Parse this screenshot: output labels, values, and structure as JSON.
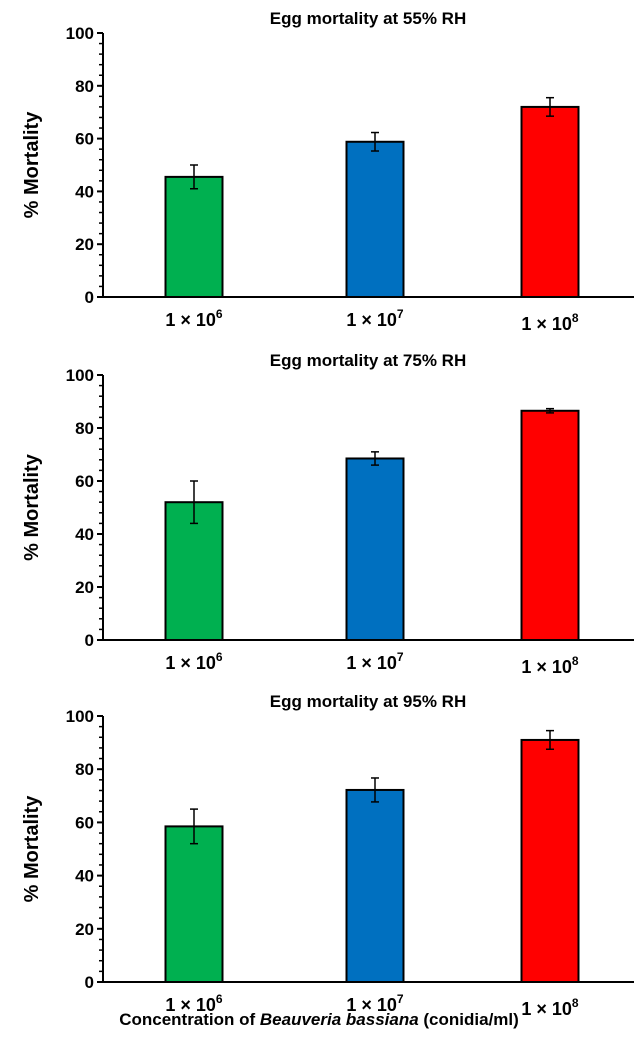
{
  "chart_data": [
    {
      "type": "bar",
      "title": "Egg mortality at 55% RH",
      "ylabel": "% Mortality",
      "ylim": [
        0,
        100
      ],
      "yticks": [
        "0",
        "20",
        "40",
        "60",
        "80",
        "100"
      ],
      "categories": [
        {
          "base": "1 × 10",
          "exp": "6"
        },
        {
          "base": "1 × 10",
          "exp": "7"
        },
        {
          "base": "1 × 10",
          "exp": "8"
        }
      ],
      "values": [
        45.5,
        58.8,
        72.0
      ],
      "errors": [
        4.5,
        3.5,
        3.5
      ],
      "colors": [
        "#00b050",
        "#0070c0",
        "#ff0000"
      ]
    },
    {
      "type": "bar",
      "title": "Egg mortality at 75% RH",
      "ylabel": "% Mortality",
      "ylim": [
        0,
        100
      ],
      "yticks": [
        "0",
        "20",
        "40",
        "60",
        "80",
        "100"
      ],
      "categories": [
        {
          "base": "1 × 10",
          "exp": "6"
        },
        {
          "base": "1 × 10",
          "exp": "7"
        },
        {
          "base": "1 × 10",
          "exp": "8"
        }
      ],
      "values": [
        52.0,
        68.5,
        86.5
      ],
      "errors": [
        8.0,
        2.5,
        0.8
      ],
      "colors": [
        "#00b050",
        "#0070c0",
        "#ff0000"
      ]
    },
    {
      "type": "bar",
      "title": "Egg mortality at 95% RH",
      "ylabel": "% Mortality",
      "ylim": [
        0,
        100
      ],
      "yticks": [
        "0",
        "20",
        "40",
        "60",
        "80",
        "100"
      ],
      "categories": [
        {
          "base": "1 × 10",
          "exp": "6"
        },
        {
          "base": "1 × 10",
          "exp": "7"
        },
        {
          "base": "1 × 10",
          "exp": "8"
        }
      ],
      "values": [
        58.5,
        72.2,
        91.0
      ],
      "errors": [
        6.5,
        4.5,
        3.5
      ],
      "colors": [
        "#00b050",
        "#0070c0",
        "#ff0000"
      ]
    }
  ],
  "shared_xlabel": {
    "prefix": "Concentration of ",
    "italic": "Beauveria bassiana",
    "suffix": " (conidia/ml)"
  }
}
